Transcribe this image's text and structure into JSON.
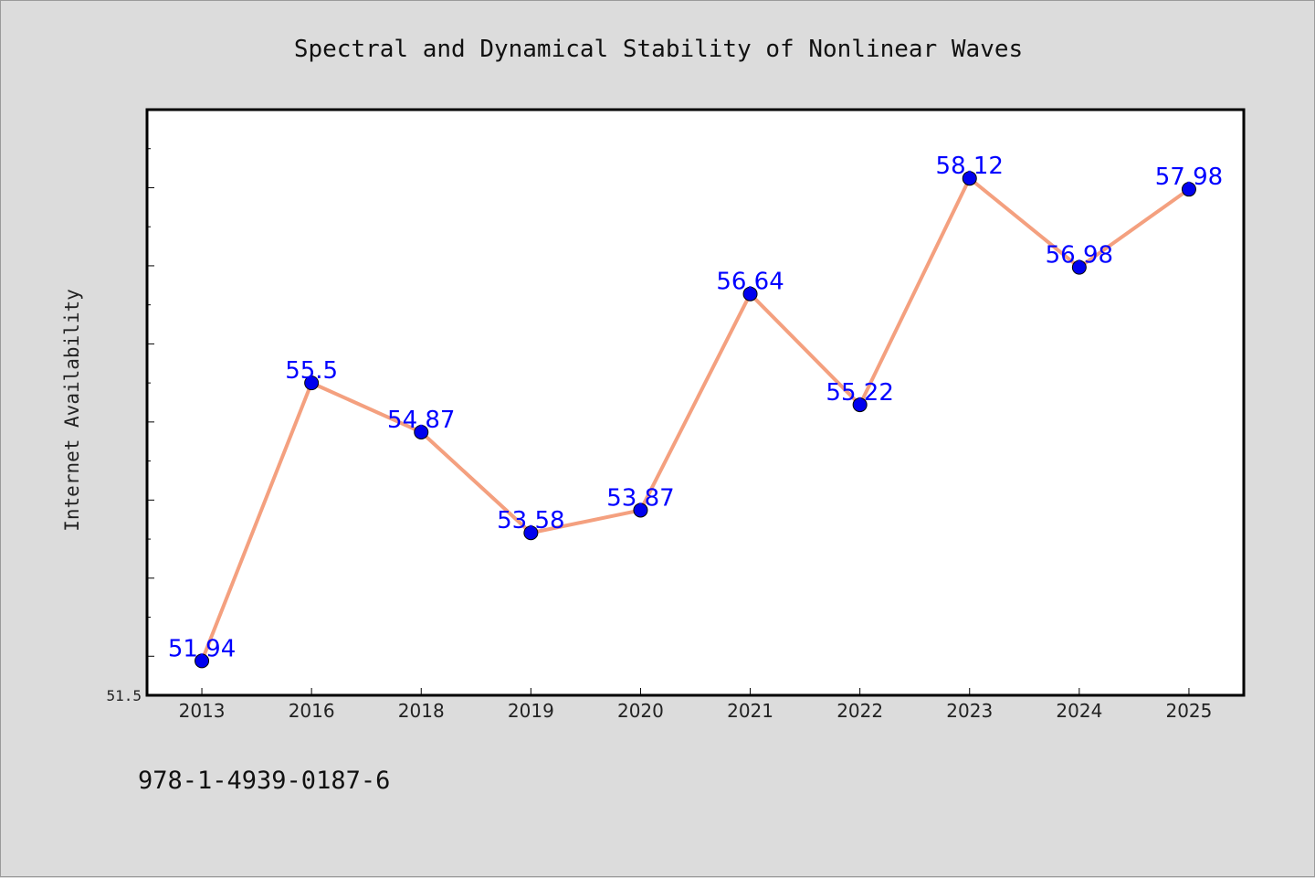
{
  "chart_data": {
    "type": "line",
    "title": "Spectral and Dynamical Stability of Nonlinear Waves",
    "xlabel": "",
    "ylabel": "Internet Availability",
    "categories": [
      "2013",
      "2016",
      "2018",
      "2019",
      "2020",
      "2021",
      "2022",
      "2023",
      "2024",
      "2025"
    ],
    "series": [
      {
        "values": [
          51.94,
          55.5,
          54.87,
          53.58,
          53.87,
          56.64,
          55.22,
          58.12,
          56.98,
          57.98
        ],
        "labels": [
          "51.94",
          "55.5",
          "54.87",
          "53.58",
          "53.87",
          "56.64",
          "55.22",
          "58.12",
          "56.98",
          "57.98"
        ],
        "line_color": "#f4a07f",
        "marker_color": "#0000ee"
      }
    ],
    "ylim": [
      51.5,
      59.0
    ],
    "ytick_labels": [
      "51.5"
    ],
    "grid": false
  },
  "footer": {
    "isbn": "978-1-4939-0187-6"
  }
}
